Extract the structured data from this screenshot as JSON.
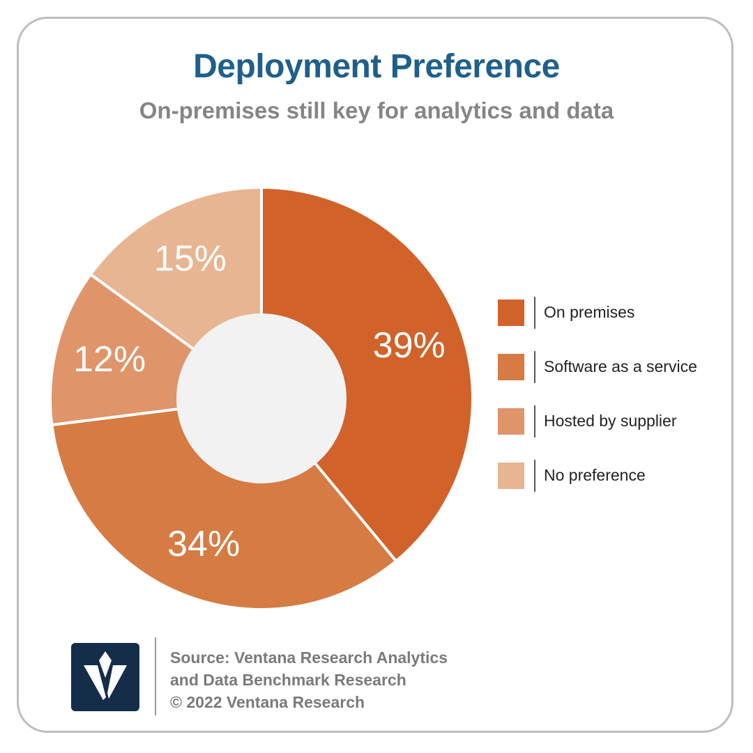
{
  "title": "Deployment Preference",
  "subtitle": "On-premises still key for analytics and data",
  "chart_data": {
    "type": "pie",
    "donut": true,
    "categories": [
      "On premises",
      "Software as a service",
      "Hosted by supplier",
      "No preference"
    ],
    "values": [
      39,
      34,
      12,
      15
    ],
    "data_labels": [
      "39%",
      "34%",
      "12%",
      "15%"
    ],
    "colors": [
      "#d0622a",
      "#d67b43",
      "#e0946a",
      "#e8b592"
    ],
    "legend_position": "right"
  },
  "legend": [
    {
      "label": "On premises",
      "color": "#d0622a"
    },
    {
      "label": "Software as a service",
      "color": "#d67b43"
    },
    {
      "label": "Hosted by supplier",
      "color": "#e0946a"
    },
    {
      "label": "No preference",
      "color": "#e8b592"
    }
  ],
  "source": {
    "line1": "Source: Ventana Research Analytics",
    "line2": "and Data Benchmark Research",
    "line3": "© 2022 Ventana Research"
  },
  "logo": {
    "letter": "V",
    "color": "#142e4a"
  }
}
